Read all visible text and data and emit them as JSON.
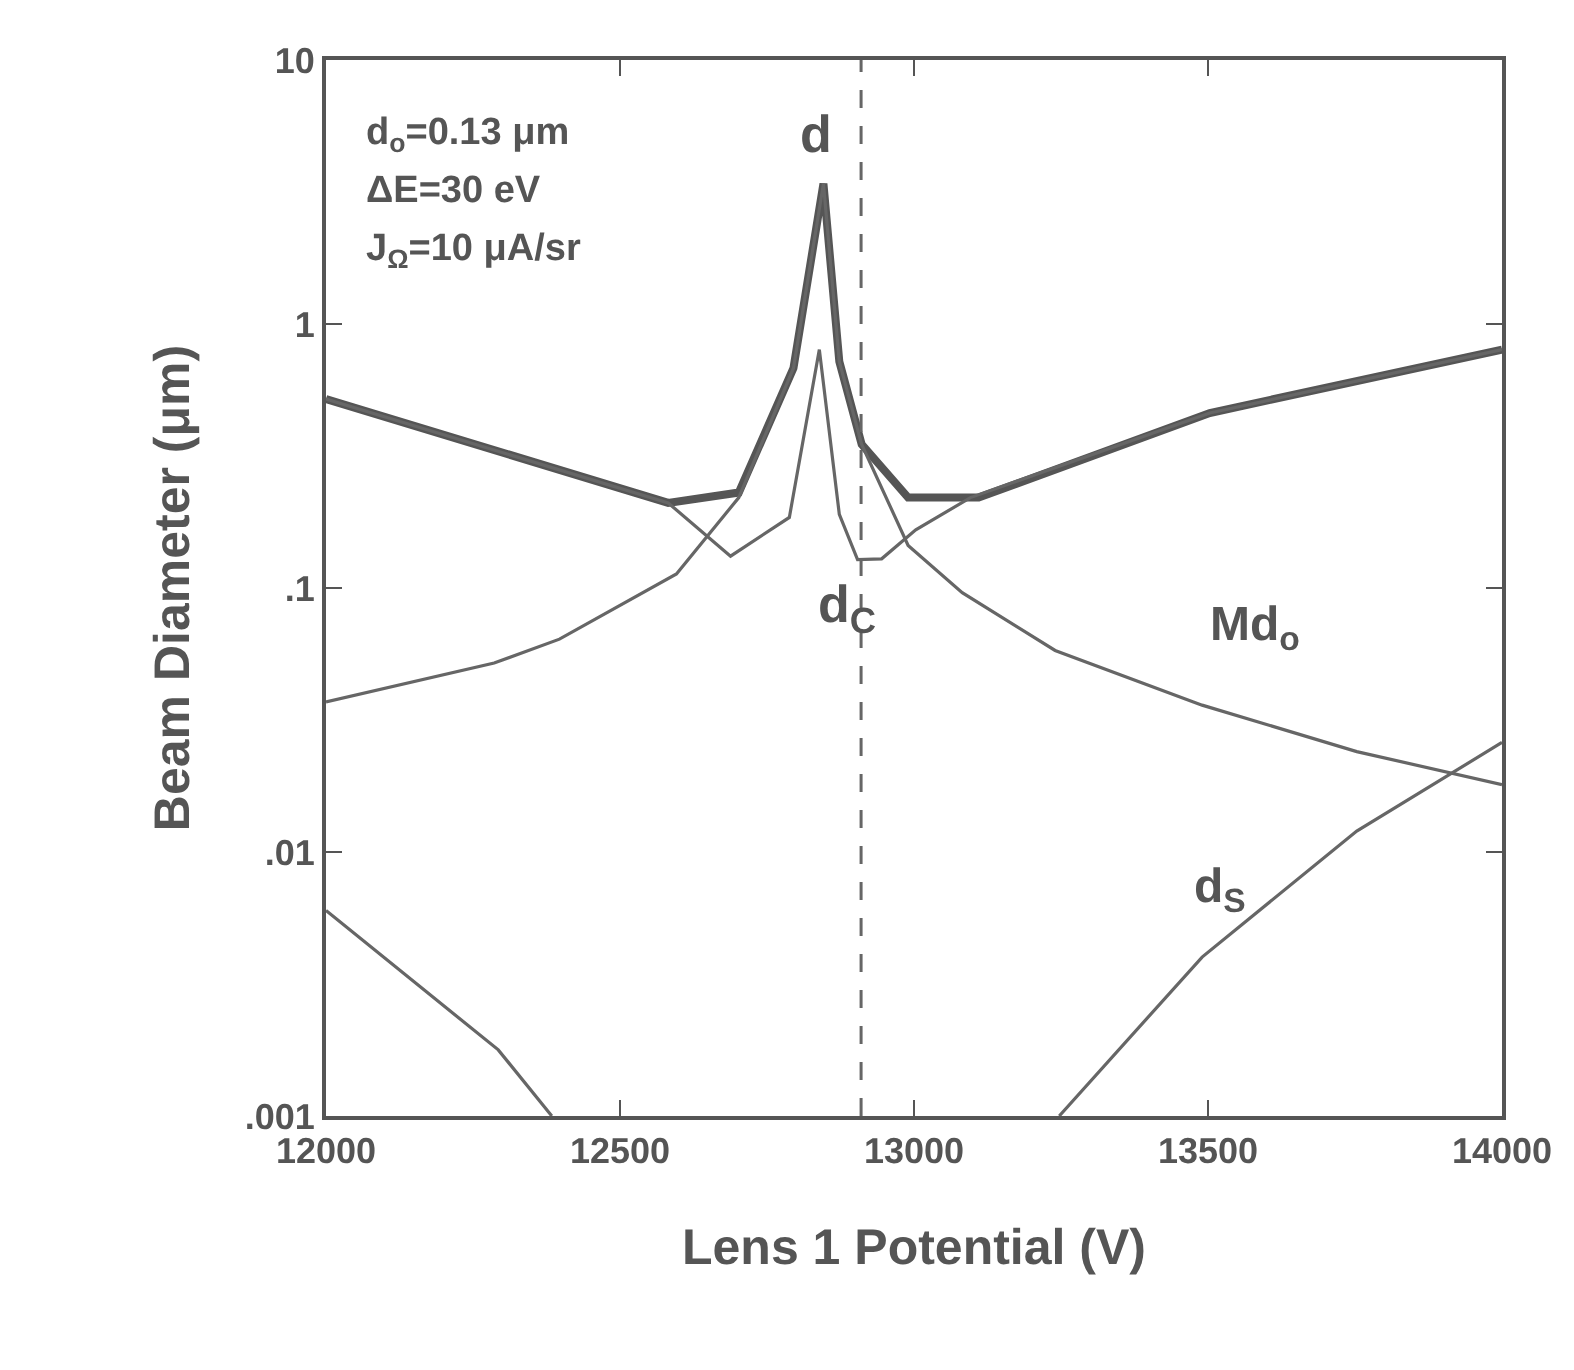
{
  "chart_data": {
    "type": "line",
    "xlabel": "Lens 1 Potential (V)",
    "ylabel": "Beam Diameter (μm)",
    "log": "y",
    "grid": false,
    "legend": false,
    "marker": "none",
    "xlim": [
      12000,
      14000
    ],
    "xticks": [
      12000,
      12500,
      13000,
      13500,
      14000
    ],
    "ylim": [
      0.001,
      10
    ],
    "yticks": [
      10,
      1,
      {
        "value": 0.1,
        "label": ".1"
      },
      {
        "value": 0.01,
        "label": ".01"
      },
      {
        "value": 0.001,
        "label": ".001"
      }
    ],
    "series": [
      {
        "name": "d",
        "color": "#555555",
        "x": [
          12000,
          12582,
          12702,
          12795,
          12846,
          12873,
          12911,
          12990,
          13110,
          13503,
          14000
        ],
        "values": [
          0.52,
          0.21,
          0.23,
          0.68,
          3.4,
          0.72,
          0.35,
          0.22,
          0.22,
          0.46,
          0.8
        ]
      },
      {
        "name": "d$_{C}$",
        "color": "#666666",
        "x": [
          12000,
          12582,
          12688,
          12788,
          12839,
          12873,
          12904,
          12945,
          13003,
          13096,
          13503,
          14000
        ],
        "values": [
          0.52,
          0.21,
          0.132,
          0.185,
          0.8,
          0.19,
          0.128,
          0.129,
          0.166,
          0.22,
          0.46,
          0.8
        ]
      },
      {
        "name": "Md$_{o}$",
        "color": "#666666",
        "x": [
          12000,
          12286,
          12397,
          12596,
          12702,
          12795,
          12846,
          12873,
          12911,
          12990,
          13082,
          13240,
          13490,
          13753,
          14000
        ],
        "values": [
          0.037,
          0.052,
          0.064,
          0.113,
          0.22,
          0.68,
          3.4,
          0.72,
          0.35,
          0.145,
          0.096,
          0.058,
          0.036,
          0.024,
          0.018
        ]
      },
      {
        "name": "d$_{S}$",
        "color": "#666666",
        "x": [
          12000,
          12293,
          12384,
          12800,
          13247,
          13490,
          13753,
          14000
        ],
        "values": [
          0.006,
          0.00178,
          0.001,
          null,
          0.001,
          0.004,
          0.012,
          0.026
        ]
      }
    ],
    "ref_lines": [
      {
        "axis": "x",
        "value": 12910,
        "line_style": "dashed",
        "color": "#666666"
      }
    ],
    "annotations": [
      "d$_{o}$=0.13 μm",
      "ΔE=30 eV",
      "J$_{Ω}$=10 μA/sr"
    ]
  }
}
